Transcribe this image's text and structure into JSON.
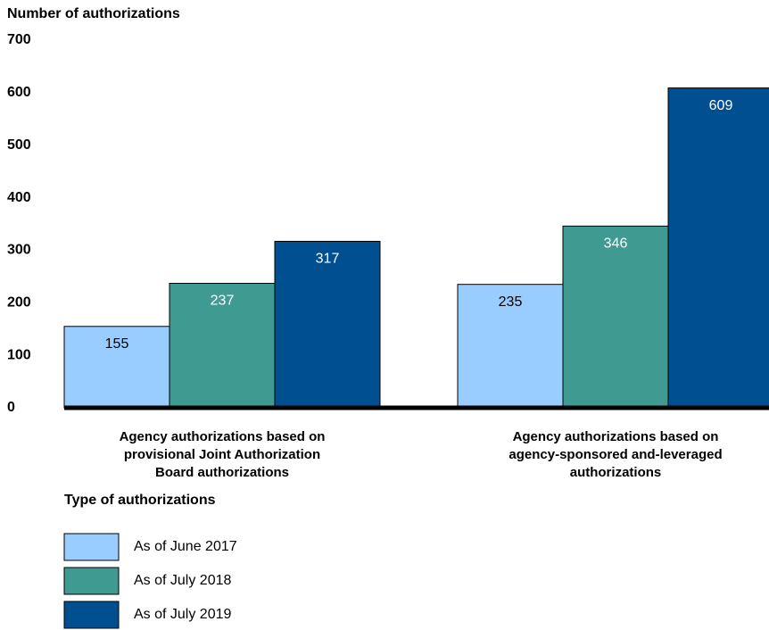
{
  "chart_data": {
    "type": "bar",
    "y_label": "Number of authorizations",
    "legend_title": "Type of authorizations",
    "categories": [
      "Agency authorizations based on\nprovisional Joint Authorization\nBoard authorizations",
      "Agency authorizations based on\nagency-sponsored and-leveraged\nauthorizations"
    ],
    "series": [
      {
        "name": "As of June 2017",
        "color": "#99ccff",
        "values": [
          155,
          235
        ]
      },
      {
        "name": "As of July 2018",
        "color": "#3f9a92",
        "values": [
          237,
          346
        ]
      },
      {
        "name": "As of July 2019",
        "color": "#004f91",
        "values": [
          317,
          609
        ]
      }
    ],
    "ylim": [
      0,
      700
    ],
    "yticks": [
      0,
      100,
      200,
      300,
      400,
      500,
      600,
      700
    ],
    "grid": false
  }
}
